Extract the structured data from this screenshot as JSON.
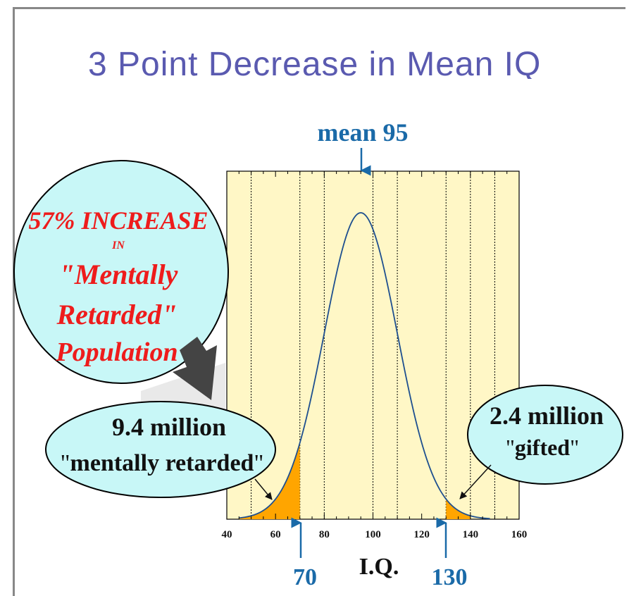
{
  "slide": {
    "title": "3 Point Decrease in Mean IQ"
  },
  "colors": {
    "plot_bg": "#fff7c6",
    "curve": "#1e4f8f",
    "shade": "#ffa500",
    "annot_blue": "#1a6aa8",
    "bubble_fill": "#c8f7f7",
    "red_text": "#ee1c1c",
    "dark_arrow": "#444444"
  },
  "annotations": {
    "mean": "mean 95",
    "low_cut": "70",
    "high_cut": "130"
  },
  "bubbles": {
    "increase": {
      "line1": "57% INCREASE",
      "line2": "IN",
      "line3": "\"Mentally",
      "line4": "Retarded\"",
      "line5": "Population"
    },
    "low": {
      "count": "9.4 million",
      "label_q1": "\"",
      "label": "mentally retarded",
      "label_q2": "\""
    },
    "high": {
      "count": "2.4 million",
      "label_q1": "\"",
      "label": "gifted",
      "label_q2": "\""
    }
  },
  "chart_data": {
    "type": "area",
    "title": "",
    "xlabel": "I.Q.",
    "ylabel": "",
    "xlim": [
      40,
      160
    ],
    "xticks": [
      40,
      60,
      80,
      100,
      120,
      140,
      160
    ],
    "xtick_labels": [
      "40",
      "60",
      "80",
      "100",
      "120",
      "140",
      "160"
    ],
    "ylim": [
      0,
      1
    ],
    "grid_lines_x": [
      50,
      70,
      80,
      100,
      110,
      130,
      140,
      150
    ],
    "series": [
      {
        "distribution": "normal",
        "mean": 95,
        "sd": 15,
        "x_min": 45,
        "x_max": 148
      }
    ],
    "shaded_regions": [
      {
        "from": 45,
        "to": 70
      },
      {
        "from": 130,
        "to": 140
      }
    ],
    "markers": [
      {
        "x": 95,
        "label": "mean 95"
      },
      {
        "x": 70,
        "label": "70"
      },
      {
        "x": 130,
        "label": "130"
      }
    ]
  }
}
